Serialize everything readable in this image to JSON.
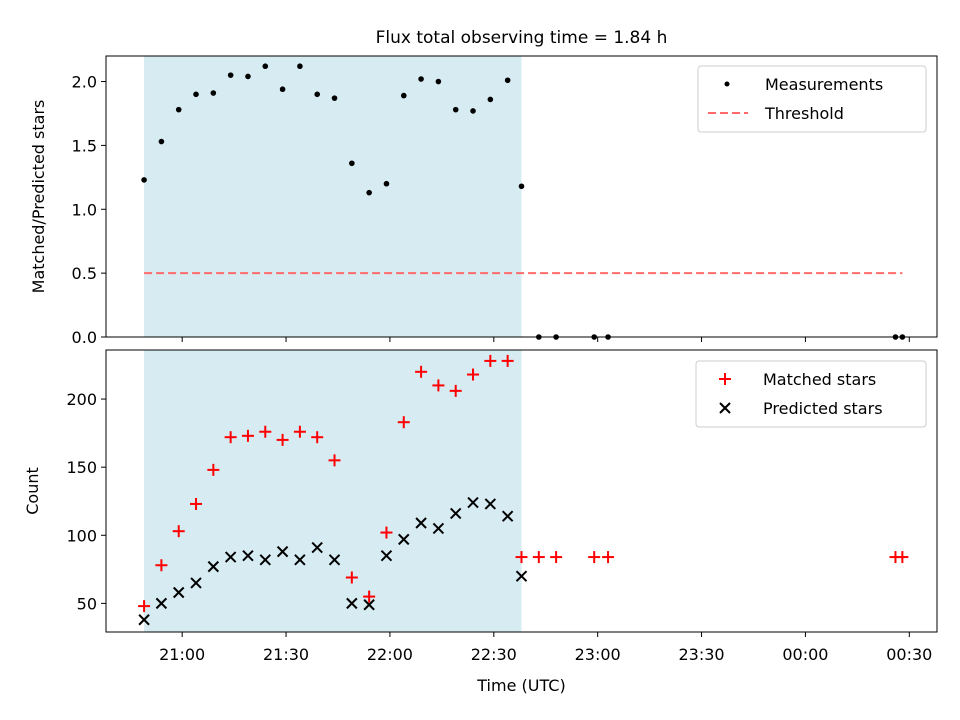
{
  "chart_data": {
    "title": "Flux total observing time = 1.84 h",
    "xlabel": "Time (UTC)",
    "x_tick_labels": [
      "21:00",
      "21:30",
      "22:00",
      "22:30",
      "23:00",
      "23:30",
      "00:00",
      "00:30"
    ],
    "x_tick_minutes": [
      0,
      30,
      60,
      90,
      120,
      150,
      180,
      210
    ],
    "xlim_minutes": [
      -22,
      218
    ],
    "observing_window_minutes": [
      -11,
      98
    ],
    "window_color": "#add8e6",
    "top": {
      "type": "scatter",
      "ylabel": "Matched/Predicted stars",
      "ylim": [
        0,
        2.2
      ],
      "yticks": [
        0.0,
        0.5,
        1.0,
        1.5,
        2.0
      ],
      "ytick_labels": [
        "0.0",
        "0.5",
        "1.0",
        "1.5",
        "2.0"
      ],
      "threshold": {
        "name": "Threshold",
        "value": 0.5,
        "x_range": [
          -11,
          208
        ],
        "color": "#ff6b6b"
      },
      "series": [
        {
          "name": "Measurements",
          "color": "#000000",
          "x": [
            -11,
            -6,
            -1,
            4,
            9,
            14,
            19,
            24,
            29,
            34,
            39,
            44,
            49,
            54,
            59,
            64,
            69,
            74,
            79,
            84,
            89,
            94,
            98,
            103,
            108,
            119,
            123,
            206,
            208
          ],
          "y": [
            1.23,
            1.53,
            1.78,
            1.9,
            1.91,
            2.05,
            2.04,
            2.12,
            1.94,
            2.12,
            1.9,
            1.87,
            1.36,
            1.13,
            1.2,
            1.89,
            2.02,
            2.0,
            1.78,
            1.77,
            1.86,
            2.01,
            1.18,
            0,
            0,
            0,
            0,
            0,
            0
          ]
        }
      ]
    },
    "bottom": {
      "type": "scatter",
      "ylabel": "Count",
      "ylim": [
        29,
        236
      ],
      "yticks": [
        50,
        100,
        150,
        200
      ],
      "ytick_labels": [
        "50",
        "100",
        "150",
        "200"
      ],
      "series": [
        {
          "name": "Matched stars",
          "marker": "plus",
          "color": "#ff0000",
          "x": [
            -11,
            -6,
            -1,
            4,
            9,
            14,
            19,
            24,
            29,
            34,
            39,
            44,
            49,
            54,
            59,
            64,
            69,
            74,
            79,
            84,
            89,
            94,
            98,
            103,
            108,
            119,
            123,
            206,
            208
          ],
          "y": [
            48,
            78,
            103,
            123,
            148,
            172,
            173,
            176,
            170,
            176,
            172,
            155,
            69,
            55,
            102,
            183,
            220,
            210,
            206,
            218,
            228,
            228,
            84,
            84,
            84,
            84,
            84,
            84,
            84
          ]
        },
        {
          "name": "Predicted stars",
          "marker": "x",
          "color": "#000000",
          "x": [
            -11,
            -6,
            -1,
            4,
            9,
            14,
            19,
            24,
            29,
            34,
            39,
            44,
            49,
            54,
            59,
            64,
            69,
            74,
            79,
            84,
            89,
            94,
            98
          ],
          "y": [
            38,
            50,
            58,
            65,
            77,
            84,
            85,
            82,
            88,
            82,
            91,
            82,
            50,
            49,
            85,
            97,
            109,
            105,
            116,
            124,
            123,
            114,
            70
          ]
        }
      ]
    }
  }
}
